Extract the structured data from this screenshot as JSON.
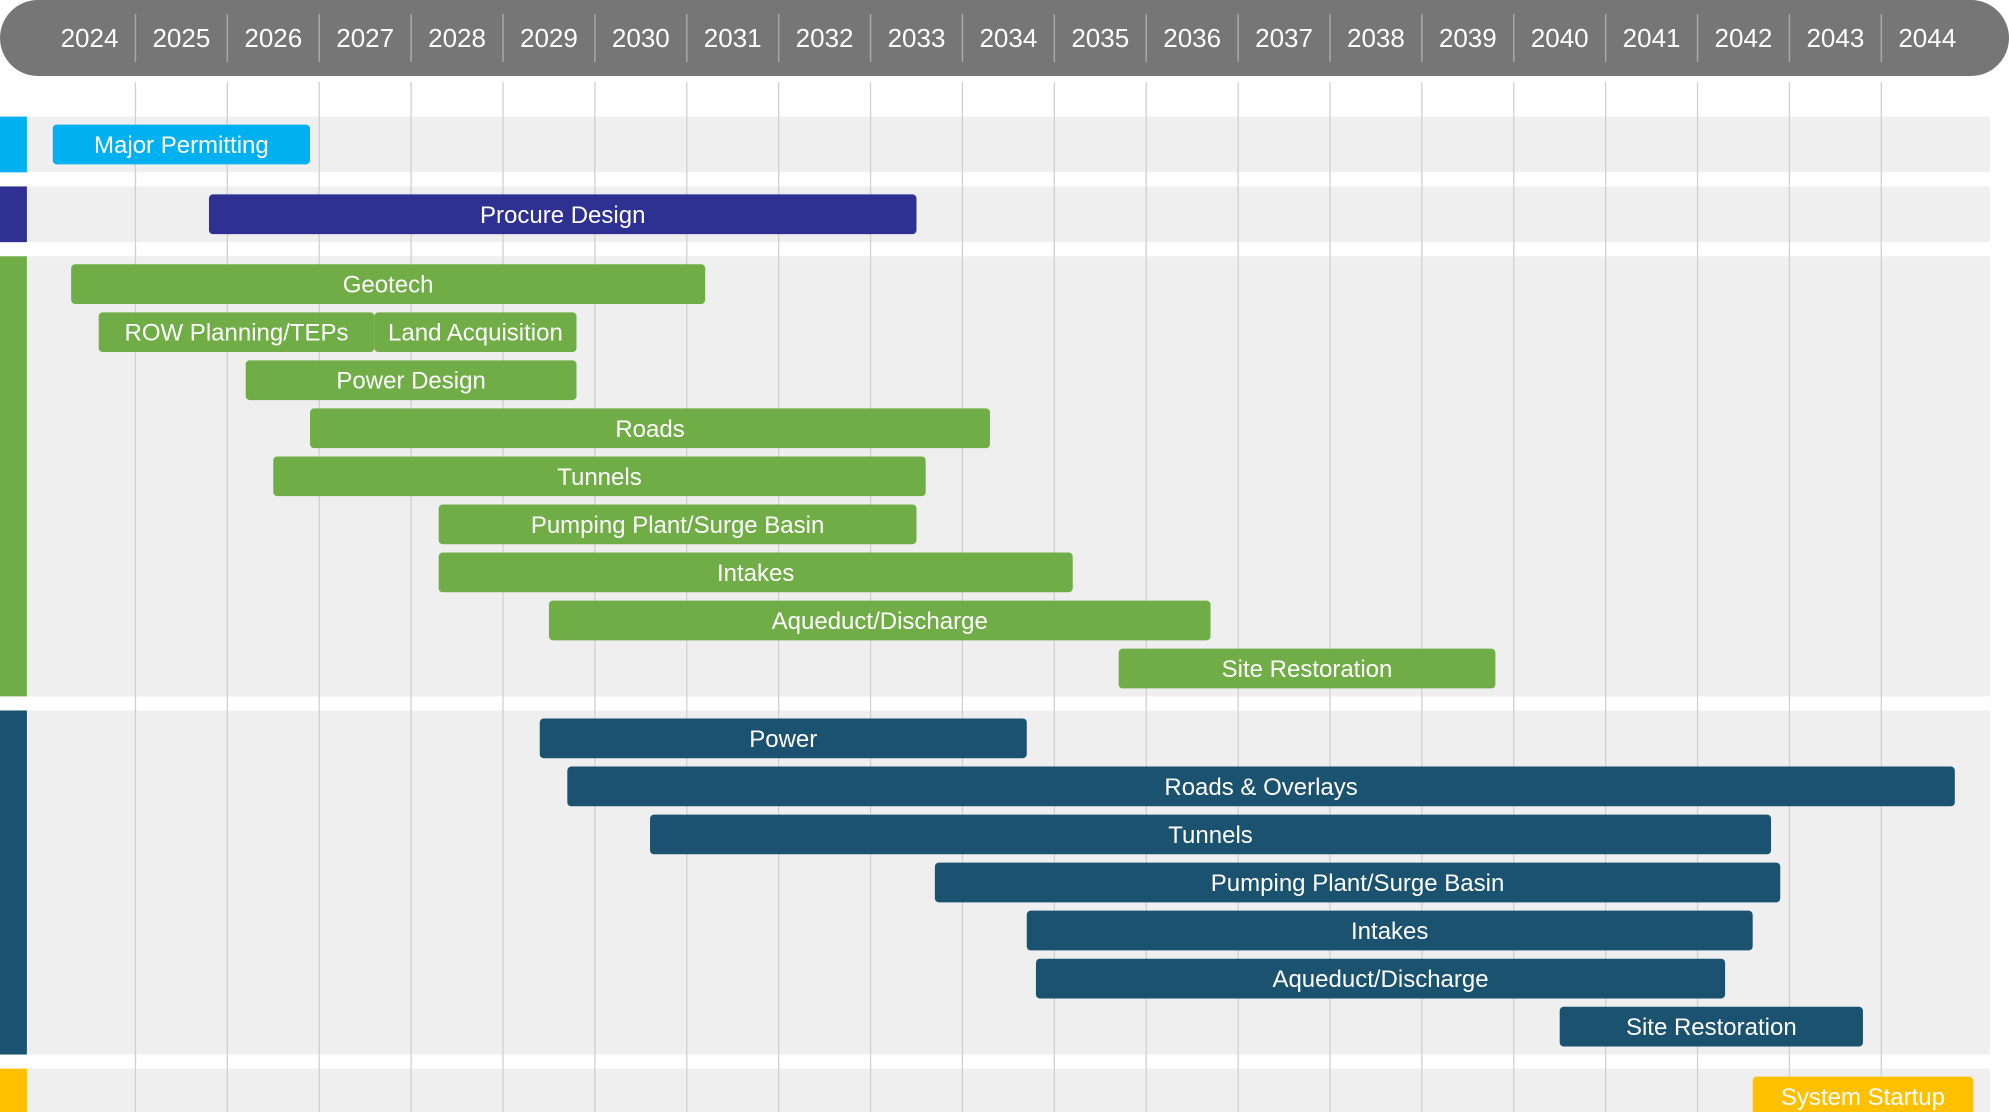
{
  "chart_data": {
    "type": "gantt",
    "xlim": [
      2024,
      2045
    ],
    "xticks": [
      2024,
      2025,
      2026,
      2027,
      2028,
      2029,
      2030,
      2031,
      2032,
      2033,
      2034,
      2035,
      2036,
      2037,
      2038,
      2039,
      2040,
      2041,
      2042,
      2043,
      2044
    ],
    "grid": true,
    "groups": [
      {
        "color": "#00b0f0",
        "rows": [
          [
            {
              "name": "Major Permitting",
              "start": 2024.1,
              "end": 2026.9
            }
          ]
        ]
      },
      {
        "color": "#2e3192",
        "rows": [
          [
            {
              "name": "Procure Design",
              "start": 2025.8,
              "end": 2033.5
            }
          ]
        ]
      },
      {
        "color": "#70ad47",
        "rows": [
          [
            {
              "name": "Geotech",
              "start": 2024.3,
              "end": 2031.2
            }
          ],
          [
            {
              "name": "ROW Planning/TEPs",
              "start": 2024.6,
              "end": 2027.6
            },
            {
              "name": "Land Acquisition",
              "start": 2027.6,
              "end": 2029.8
            }
          ],
          [
            {
              "name": "Power Design",
              "start": 2026.2,
              "end": 2029.8
            }
          ],
          [
            {
              "name": "Roads",
              "start": 2026.9,
              "end": 2034.3
            }
          ],
          [
            {
              "name": "Tunnels",
              "start": 2026.5,
              "end": 2033.6
            }
          ],
          [
            {
              "name": "Pumping Plant/Surge Basin",
              "start": 2028.3,
              "end": 2033.5
            }
          ],
          [
            {
              "name": "Intakes",
              "start": 2028.3,
              "end": 2035.2
            }
          ],
          [
            {
              "name": "Aqueduct/Discharge",
              "start": 2029.5,
              "end": 2036.7
            }
          ],
          [
            {
              "name": "Site Restoration",
              "start": 2035.7,
              "end": 2039.8
            }
          ]
        ]
      },
      {
        "color": "#1a5270",
        "rows": [
          [
            {
              "name": "Power",
              "start": 2029.4,
              "end": 2034.7
            }
          ],
          [
            {
              "name": "Roads & Overlays",
              "start": 2029.7,
              "end": 2044.8
            }
          ],
          [
            {
              "name": "Tunnels",
              "start": 2030.6,
              "end": 2042.8
            }
          ],
          [
            {
              "name": "Pumping Plant/Surge Basin",
              "start": 2033.7,
              "end": 2042.9
            }
          ],
          [
            {
              "name": "Intakes",
              "start": 2034.7,
              "end": 2042.6
            }
          ],
          [
            {
              "name": "Aqueduct/Discharge",
              "start": 2034.8,
              "end": 2042.3
            }
          ],
          [
            {
              "name": "Site Restoration",
              "start": 2040.5,
              "end": 2043.8
            }
          ]
        ]
      },
      {
        "color": "#ffc000",
        "rows": [
          [
            {
              "name": "System Startup",
              "start": 2042.6,
              "end": 2045.0
            }
          ]
        ]
      }
    ]
  }
}
